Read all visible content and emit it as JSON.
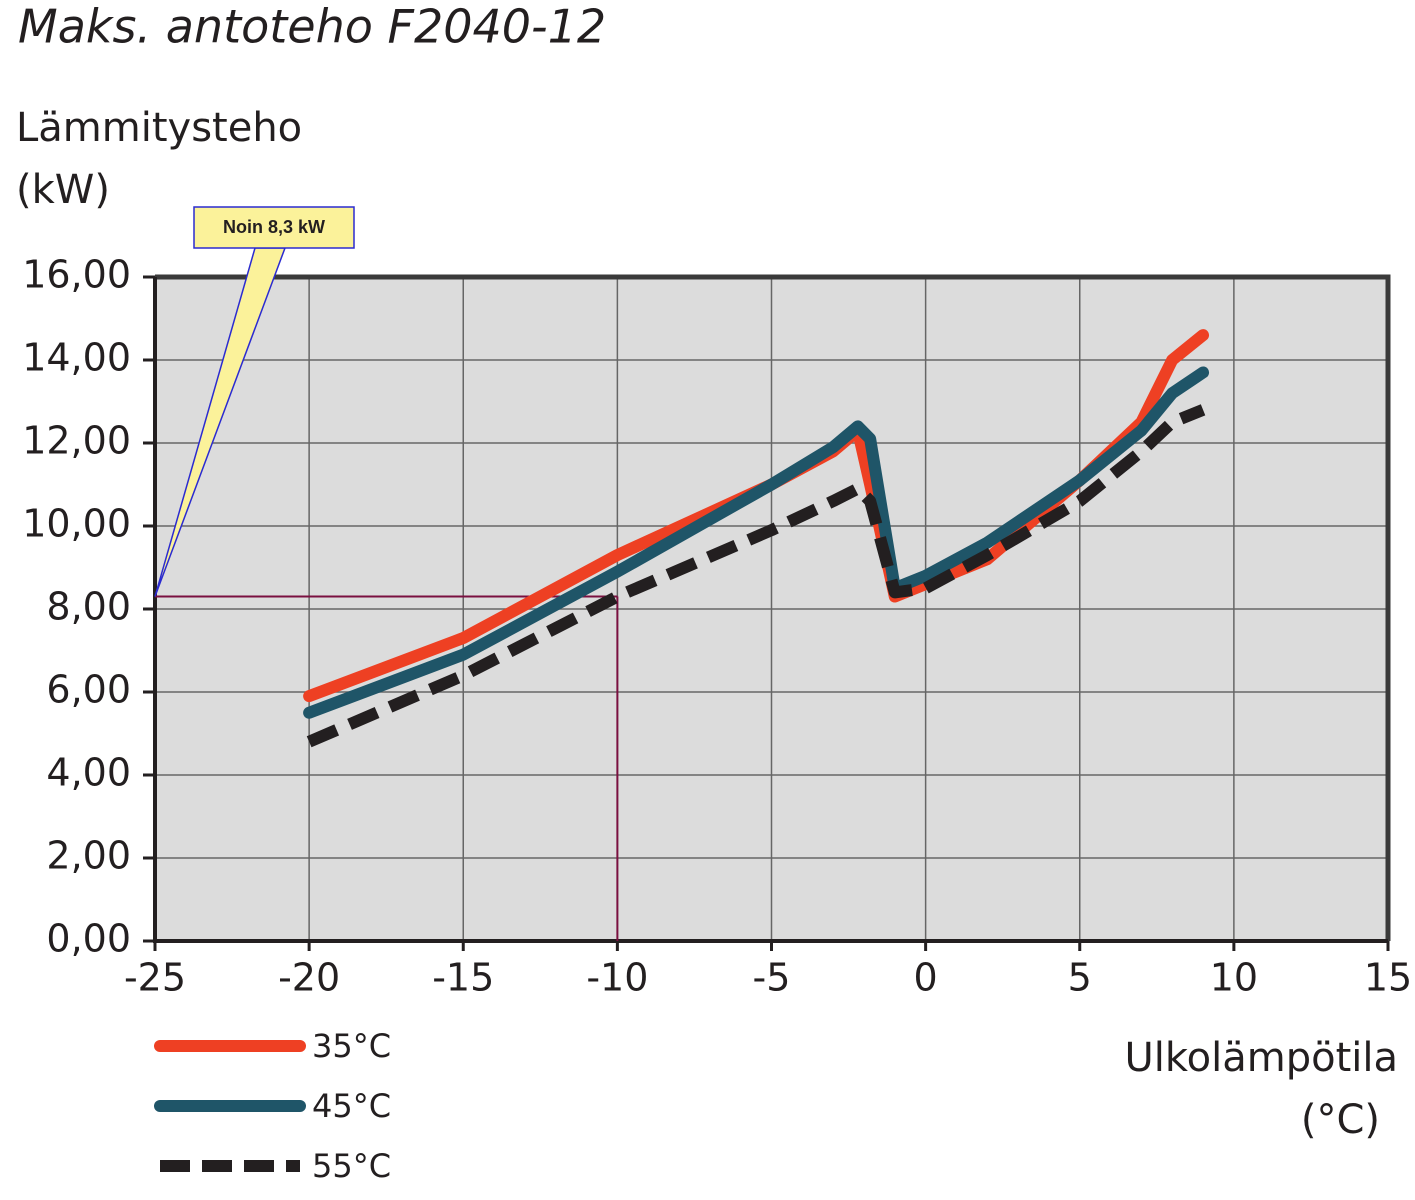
{
  "chart_data": {
    "type": "line",
    "title": "Maks. antoteho F2040-12",
    "ylabel": [
      "Lämmitysteho",
      "(kW)"
    ],
    "xlabel": [
      "Ulkolämpötila",
      "(°C)"
    ],
    "x": [
      -20,
      -15,
      -10,
      -5,
      -3,
      -2.2,
      -1.8,
      -1,
      0,
      2,
      5,
      7,
      8,
      9
    ],
    "series": [
      {
        "name": "35°C",
        "color": "#ee4023",
        "dash": false,
        "values": [
          5.9,
          7.3,
          9.3,
          11.0,
          11.8,
          12.3,
          11.0,
          8.3,
          8.6,
          9.2,
          11.1,
          12.5,
          14.0,
          14.6
        ]
      },
      {
        "name": "45°C",
        "color": "#1f5568",
        "dash": false,
        "values": [
          5.5,
          6.9,
          8.9,
          11.0,
          11.9,
          12.4,
          12.1,
          8.5,
          8.8,
          9.6,
          11.1,
          12.3,
          13.2,
          13.7
        ]
      },
      {
        "name": "55°C",
        "color": "#231f20",
        "dash": true,
        "values": [
          4.8,
          6.4,
          8.3,
          9.9,
          10.6,
          10.9,
          10.6,
          8.4,
          8.5,
          9.3,
          10.6,
          11.8,
          12.5,
          12.8
        ]
      }
    ],
    "xlim": [
      -25,
      15
    ],
    "xticks": [
      -25,
      -20,
      -15,
      -10,
      -5,
      0,
      5,
      10,
      15
    ],
    "ylim": [
      0,
      16
    ],
    "yticks": [
      {
        "value": 0,
        "label": "0,00"
      },
      {
        "value": 2,
        "label": "2,00"
      },
      {
        "value": 4,
        "label": "4,00"
      },
      {
        "value": 6,
        "label": "6,00"
      },
      {
        "value": 8,
        "label": "8,00"
      },
      {
        "value": 10,
        "label": "10,00"
      },
      {
        "value": 12,
        "label": "12,00"
      },
      {
        "value": 14,
        "label": "14,00"
      },
      {
        "value": 16,
        "label": "16,00"
      }
    ],
    "grid": true,
    "annotation": {
      "text": "Noin 8,3 kW",
      "x": -10,
      "y": 8.3
    }
  }
}
